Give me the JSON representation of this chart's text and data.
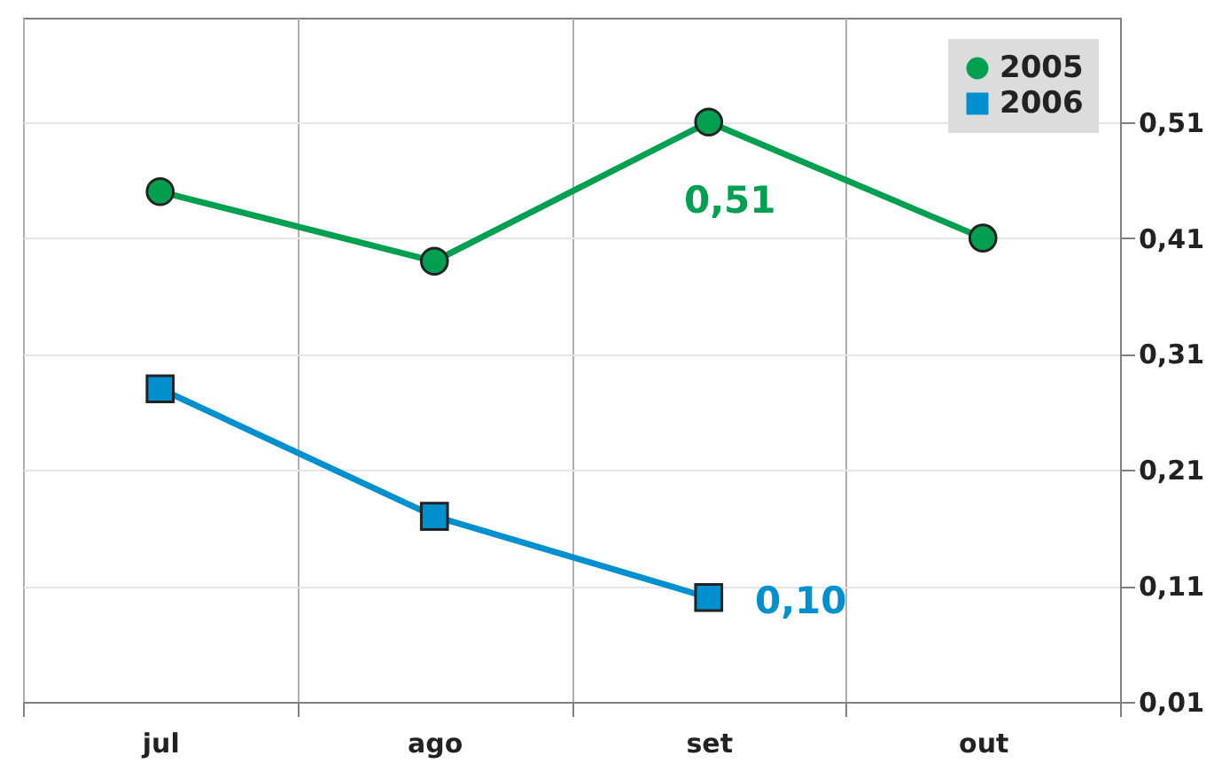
{
  "chart_data": {
    "type": "line",
    "categories": [
      "jul",
      "ago",
      "set",
      "out"
    ],
    "series": [
      {
        "name": "2005",
        "color": "#00a050",
        "marker": "circle",
        "values": [
          0.45,
          0.39,
          0.51,
          0.41
        ],
        "value_labels": [
          null,
          null,
          "0,51",
          null
        ]
      },
      {
        "name": "2006",
        "color": "#0090d0",
        "marker": "square",
        "values": [
          0.28,
          0.17,
          0.1,
          null
        ],
        "value_labels": [
          null,
          null,
          "0,10",
          null
        ]
      }
    ],
    "ylim": [
      0.01,
      0.6
    ],
    "yticks": [
      {
        "value": 0.01,
        "label": "0,01"
      },
      {
        "value": 0.11,
        "label": "0,11"
      },
      {
        "value": 0.21,
        "label": "0,21"
      },
      {
        "value": 0.31,
        "label": "0,31"
      },
      {
        "value": 0.41,
        "label": "0,41"
      },
      {
        "value": 0.51,
        "label": "0,51"
      }
    ],
    "grid": true,
    "legend": "top right"
  }
}
